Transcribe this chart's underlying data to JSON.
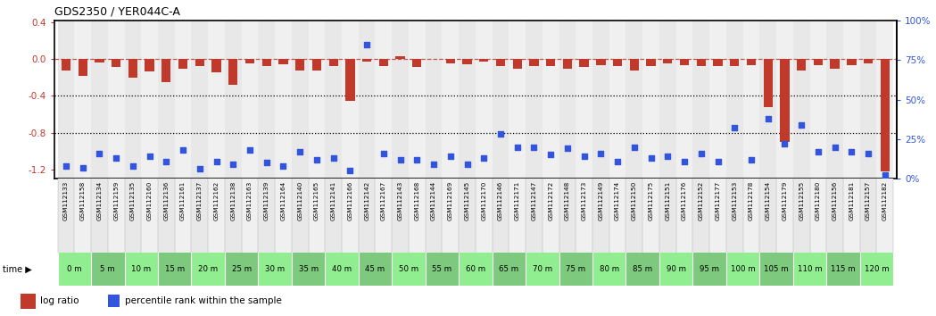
{
  "title": "GDS2350 / YER044C-A",
  "samples": [
    "GSM112133",
    "GSM112158",
    "GSM112134",
    "GSM112159",
    "GSM112135",
    "GSM112160",
    "GSM112136",
    "GSM112161",
    "GSM112137",
    "GSM112162",
    "GSM112138",
    "GSM112163",
    "GSM112139",
    "GSM112164",
    "GSM112140",
    "GSM112165",
    "GSM112141",
    "GSM112166",
    "GSM112142",
    "GSM112167",
    "GSM112143",
    "GSM112168",
    "GSM112144",
    "GSM112169",
    "GSM112145",
    "GSM112170",
    "GSM112146",
    "GSM112171",
    "GSM112147",
    "GSM112172",
    "GSM112148",
    "GSM112173",
    "GSM112149",
    "GSM112174",
    "GSM112150",
    "GSM112175",
    "GSM112151",
    "GSM112176",
    "GSM112152",
    "GSM112177",
    "GSM112153",
    "GSM112178",
    "GSM112154",
    "GSM112179",
    "GSM112155",
    "GSM112180",
    "GSM112156",
    "GSM112181",
    "GSM112157",
    "GSM112182"
  ],
  "time_labels": [
    "0 m",
    "5 m",
    "10 m",
    "15 m",
    "20 m",
    "25 m",
    "30 m",
    "35 m",
    "40 m",
    "45 m",
    "50 m",
    "55 m",
    "60 m",
    "65 m",
    "70 m",
    "75 m",
    "80 m",
    "85 m",
    "90 m",
    "95 m",
    "100 m",
    "105 m",
    "110 m",
    "115 m",
    "120 m"
  ],
  "log_ratio": [
    -0.12,
    -0.18,
    -0.04,
    -0.09,
    -0.2,
    -0.13,
    -0.25,
    -0.1,
    -0.08,
    -0.14,
    -0.28,
    -0.05,
    -0.08,
    -0.06,
    -0.12,
    -0.12,
    -0.08,
    -0.45,
    -0.03,
    -0.08,
    0.03,
    -0.09,
    0.0,
    -0.05,
    -0.06,
    -0.03,
    -0.08,
    -0.1,
    -0.08,
    -0.08,
    -0.1,
    -0.09,
    -0.07,
    -0.08,
    -0.12,
    -0.08,
    -0.05,
    -0.07,
    -0.08,
    -0.08,
    -0.08,
    -0.07,
    -0.52,
    -0.9,
    -0.12,
    -0.07,
    -0.1,
    -0.07,
    -0.05,
    -1.22
  ],
  "percentile_rank": [
    8,
    7,
    16,
    13,
    8,
    14,
    11,
    18,
    6,
    11,
    9,
    18,
    10,
    8,
    17,
    12,
    13,
    5,
    85,
    16,
    12,
    12,
    9,
    14,
    9,
    13,
    28,
    20,
    20,
    15,
    19,
    14,
    16,
    11,
    20,
    13,
    14,
    11,
    16,
    11,
    32,
    12,
    38,
    22,
    34,
    17,
    20,
    17,
    16,
    2
  ],
  "bar_color": "#c0392b",
  "scatter_color": "#3355dd",
  "ylim": [
    -1.3,
    0.42
  ],
  "right_ylim": [
    0,
    100
  ],
  "left_ticks": [
    0.4,
    0.0,
    -0.4,
    -0.8,
    -1.2
  ],
  "right_ticks": [
    0,
    25,
    50,
    75,
    100
  ],
  "right_tick_labels": [
    "0%",
    "25%",
    "50%",
    "75%",
    "100%"
  ],
  "dotted_lines": [
    -0.4,
    -0.8
  ],
  "col_colors": [
    "#e8e8e8",
    "#f0f0f0"
  ]
}
